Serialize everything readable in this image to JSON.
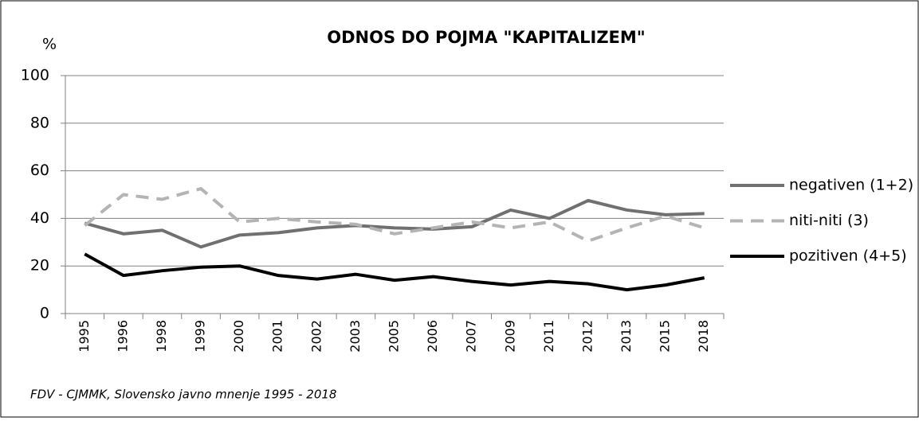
{
  "chart_data": {
    "type": "line",
    "title": "ODNOS DO POJMA \"KAPITALIZEM\"",
    "y_label": "%",
    "source": "FDV - CJMMK, Slovensko javno mnenje 1995 - 2018",
    "categories": [
      "1995",
      "1996",
      "1998",
      "1999",
      "2000",
      "2001",
      "2002",
      "2003",
      "2005",
      "2006",
      "2007",
      "2009",
      "2011",
      "2012",
      "2013",
      "2015",
      "2018"
    ],
    "series": [
      {
        "name": "negativen (1+2)",
        "color": "#707070",
        "dashed": false,
        "values": [
          38,
          33.5,
          35,
          28,
          33,
          34,
          36,
          37,
          36,
          35.5,
          36.5,
          43.5,
          40,
          47.5,
          43.5,
          41.5,
          42
        ]
      },
      {
        "name": "niti-niti (3)",
        "color": "#b4b4b4",
        "dashed": true,
        "values": [
          37,
          50,
          48,
          52.5,
          38.5,
          40,
          38.5,
          37.5,
          33.5,
          36,
          38.5,
          36,
          38.5,
          30.5,
          36,
          41,
          36
        ]
      },
      {
        "name": "pozitiven (4+5)",
        "color": "#000000",
        "dashed": false,
        "values": [
          25,
          16,
          18,
          19.5,
          20,
          16,
          14.5,
          16.5,
          14,
          15.5,
          13.5,
          12,
          13.5,
          12.5,
          10,
          12,
          15
        ]
      }
    ],
    "ylim": [
      0,
      100
    ],
    "yticks": [
      0,
      20,
      40,
      60,
      80,
      100
    ],
    "grid": true,
    "legend": "right"
  }
}
